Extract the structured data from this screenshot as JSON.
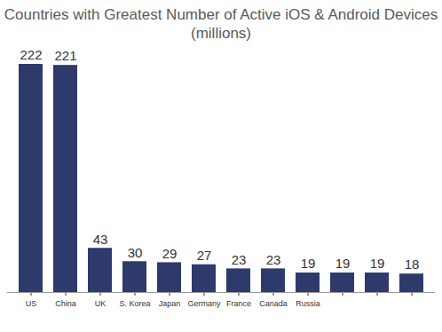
{
  "chart_data": {
    "type": "bar",
    "title": "Countries with Greatest Number of Active iOS & Android Devices",
    "subtitle": "(millions)",
    "categories": [
      "US",
      "China",
      "UK",
      "S. Korea",
      "Japan",
      "Germany",
      "France",
      "Canada",
      "Russia",
      null,
      null,
      null
    ],
    "values": [
      222,
      221,
      43,
      30,
      29,
      27,
      23,
      23,
      19,
      19,
      19,
      18
    ],
    "color": "#2d3a6b",
    "ylim": [
      0,
      222
    ],
    "yticks": [],
    "grid": false,
    "data_labels": true,
    "tick_labels": "x"
  }
}
